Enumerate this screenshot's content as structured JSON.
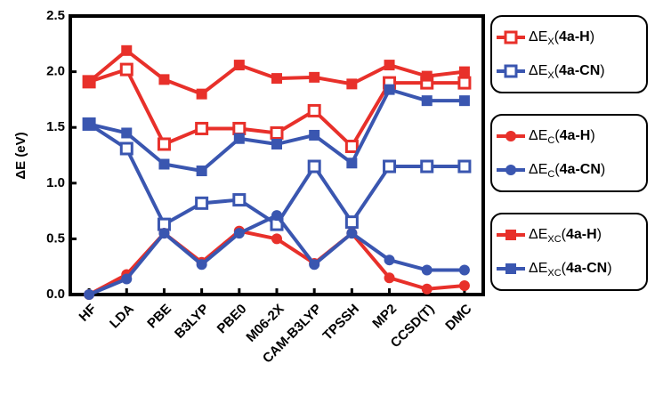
{
  "chart_data": {
    "type": "line",
    "y_label": "ΔE (eV)",
    "categories": [
      "HF",
      "LDA",
      "PBE",
      "B3LYP",
      "PBE0",
      "M06-2X",
      "CAM-B3LYP",
      "TPSSH",
      "MP2",
      "CCSD(T)",
      "DMC"
    ],
    "ylim": [
      0,
      2.5
    ],
    "yticks": [
      {
        "value": 0,
        "label": "0.0"
      },
      0.5,
      {
        "value": 1,
        "label": "1.0"
      },
      1.5,
      {
        "value": 2,
        "label": "2.0"
      },
      2.5
    ],
    "series": [
      {
        "name": "ΔEX(4a-H)",
        "color": "#e8302a",
        "marker": "square-open",
        "values": [
          1.91,
          2.02,
          1.35,
          1.49,
          1.49,
          1.45,
          1.65,
          1.33,
          1.9,
          1.9,
          1.9
        ]
      },
      {
        "name": "ΔEX(4a-CN)",
        "color": "#3a56b0",
        "marker": "square-open",
        "values": [
          1.53,
          1.31,
          0.63,
          0.82,
          0.85,
          0.63,
          1.15,
          0.65,
          1.15,
          1.15,
          1.15
        ]
      },
      {
        "name": "ΔEC(4a-H)",
        "color": "#e8302a",
        "marker": "circle",
        "values": [
          0,
          0.18,
          0.55,
          0.29,
          0.57,
          0.5,
          0.28,
          0.55,
          0.15,
          0.05,
          0.08
        ]
      },
      {
        "name": "ΔEC(4a-CN)",
        "color": "#3a56b0",
        "marker": "circle",
        "values": [
          0,
          0.14,
          0.55,
          0.27,
          0.55,
          0.71,
          0.27,
          0.55,
          0.31,
          0.22,
          0.22
        ]
      },
      {
        "name": "ΔEXC(4a-H)",
        "color": "#e8302a",
        "marker": "square",
        "values": [
          1.91,
          2.19,
          1.93,
          1.8,
          2.06,
          1.94,
          1.95,
          1.89,
          2.06,
          1.96,
          2.0
        ]
      },
      {
        "name": "ΔEXC(4a-CN)",
        "color": "#3a56b0",
        "marker": "square",
        "values": [
          1.53,
          1.45,
          1.17,
          1.11,
          1.4,
          1.35,
          1.43,
          1.18,
          1.84,
          1.74,
          1.74
        ]
      }
    ]
  }
}
